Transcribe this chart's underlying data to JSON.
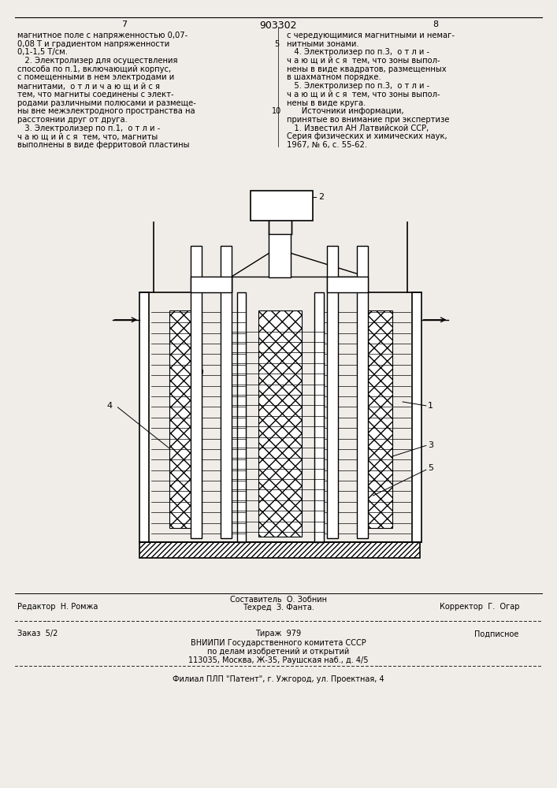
{
  "bg_color": "#f0ede8",
  "page_width": 7.07,
  "page_height": 10.0,
  "header": {
    "left_num": "7",
    "center_num": "903302",
    "right_num": "8"
  },
  "left_col_text": [
    "магнитное поле с напряженностью 0,07-",
    "0,08 Т и градиентом напряженности",
    "0,1-1,5 Т/см.",
    "   2. Электролизер для осуществления",
    "способа по п.1, включающий корпус,",
    "с помещенными в нем электродами и",
    "магнитами,  о т л и ч а ю щ и й с я",
    "тем, что магниты соединены с элект-",
    "родами различными полюсами и размеще-",
    "ны вне межэлектродного пространства на  10",
    "расстоянии друг от друга.",
    "   3. Электролизер по п.1,  о т л и -",
    "ч а ю щ и й с я  тем, что, магниты",
    "выполнены в виде ферритовой пластины"
  ],
  "right_col_text": [
    "с чередующимися магнитными и немаг-",
    "нитными зонами.",
    "   4. Электролизер по п.3,  о т л и -",
    "ч а ю щ и й с я  тем, что зоны выпол-",
    "нены в виде квадратов, размещенных",
    "в шахматном порядке.",
    "   5. Электролизер по п.3,  о т л и -",
    "ч а ю щ и й с я  тем, что зоны выпол-",
    "нены в виде круга.",
    "      Источники информации,",
    "принятые во внимание при экспертизе",
    "   1. Известил АН Латвийской ССР,",
    "Серия физических и химических наук,",
    "1967, № 6, с. 55-62."
  ],
  "bottom_section": {
    "editor": "Редактор  Н. Ромжа",
    "composer": "Составитель  О. Зобнин",
    "techred": "Техред  З. Фанта.",
    "corrector": "Корректор  Г.  Огар",
    "order": "Заказ  5/2",
    "circulation": "Тираж  979",
    "subscript": "Подписное",
    "org1": "ВНИИПИ Государственного комитета СССР",
    "org2": "по делам изобретений и открытий",
    "org3": "113035, Москва, Ж-35, Раушская наб., д. 4/5",
    "branch": "Филиал ПЛП \"Патент\", г. Ужгород, ул. Проектная, 4"
  }
}
